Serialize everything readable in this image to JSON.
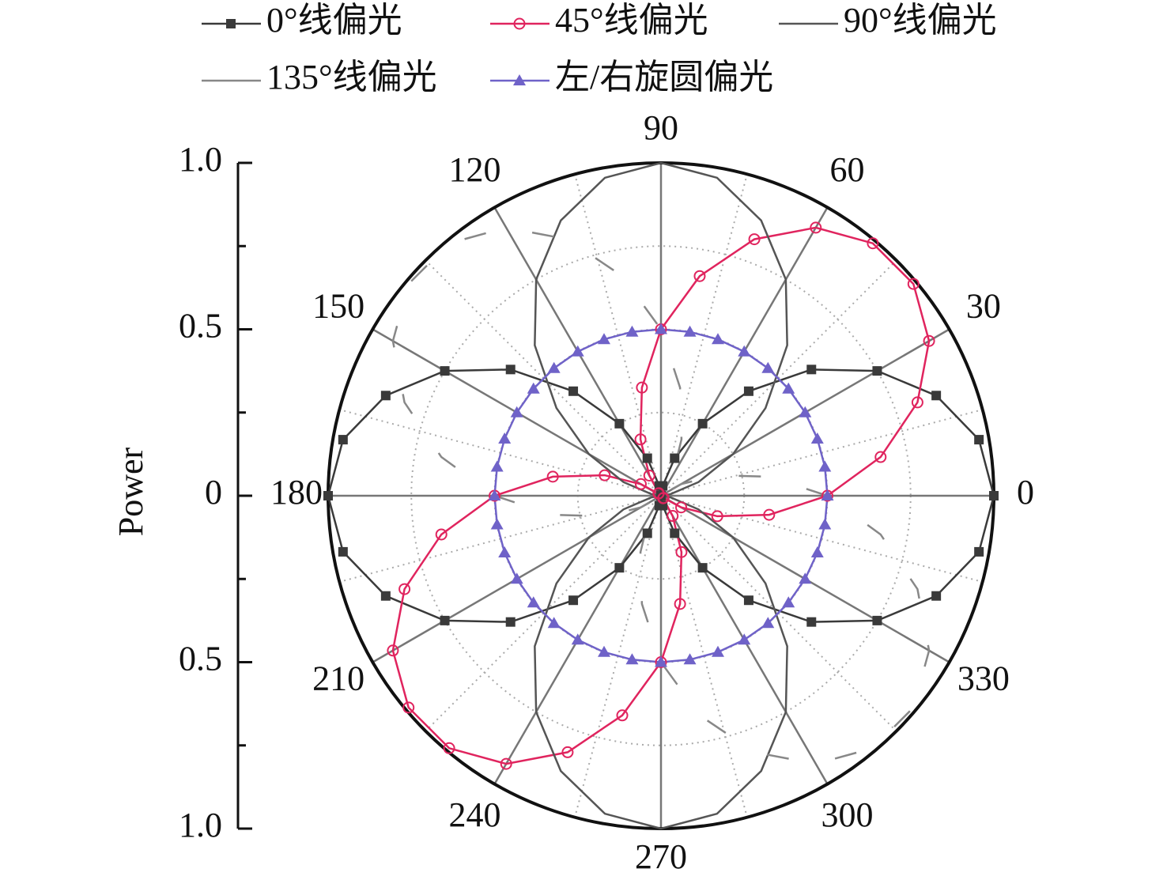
{
  "chart_data": {
    "type": "polar",
    "ylabel": "Power",
    "rlim": [
      0,
      1
    ],
    "rticks": [
      0,
      {
        "value": 0.5,
        "label": "0.5"
      },
      {
        "value": 1,
        "label": "1.0"
      }
    ],
    "thetaticks": [
      0,
      30,
      60,
      90,
      120,
      150,
      180,
      210,
      240,
      270,
      300,
      330
    ],
    "grid": true,
    "legend": "top",
    "x": [
      0,
      10,
      20,
      30,
      40,
      50,
      60,
      70,
      80,
      90,
      100,
      110,
      120,
      130,
      140,
      150,
      160,
      170,
      180,
      190,
      200,
      210,
      220,
      230,
      240,
      250,
      260,
      270,
      280,
      290,
      300,
      310,
      320,
      330,
      340,
      350
    ],
    "series": [
      {
        "name": "0°线偏光",
        "color": "#3a3a3a",
        "marker": "square",
        "dash": "solid",
        "values": [
          1,
          0.97,
          0.88,
          0.75,
          0.59,
          0.41,
          0.25,
          0.12,
          0.03,
          0,
          0.03,
          0.12,
          0.25,
          0.41,
          0.59,
          0.75,
          0.88,
          0.97,
          1,
          0.97,
          0.88,
          0.75,
          0.59,
          0.41,
          0.25,
          0.12,
          0.03,
          0,
          0.03,
          0.12,
          0.25,
          0.41,
          0.59,
          0.75,
          0.88,
          0.97
        ]
      },
      {
        "name": "45°线偏光",
        "color": "#e0245e",
        "marker": "circle",
        "dash": "solid",
        "values": [
          0.5,
          0.67,
          0.82,
          0.93,
          0.99,
          0.99,
          0.93,
          0.82,
          0.67,
          0.5,
          0.33,
          0.18,
          0.07,
          0.01,
          0.01,
          0.07,
          0.18,
          0.33,
          0.5,
          0.67,
          0.82,
          0.93,
          0.99,
          0.99,
          0.93,
          0.82,
          0.67,
          0.5,
          0.33,
          0.18,
          0.07,
          0.01,
          0.01,
          0.07,
          0.18,
          0.33
        ]
      },
      {
        "name": "90°线偏光",
        "color": "#555555",
        "marker": "none",
        "dash": "solid",
        "values": [
          0,
          0.03,
          0.12,
          0.25,
          0.41,
          0.59,
          0.75,
          0.88,
          0.97,
          1,
          0.97,
          0.88,
          0.75,
          0.59,
          0.41,
          0.25,
          0.12,
          0.03,
          0,
          0.03,
          0.12,
          0.25,
          0.41,
          0.59,
          0.75,
          0.88,
          0.97,
          1,
          0.97,
          0.88,
          0.75,
          0.59,
          0.41,
          0.25,
          0.12,
          0.03
        ]
      },
      {
        "name": "135°线偏光",
        "color": "#888888",
        "marker": "none",
        "dash": "dashed",
        "values": [
          0.5,
          0.33,
          0.18,
          0.07,
          0.01,
          0.01,
          0.07,
          0.18,
          0.33,
          0.5,
          0.67,
          0.82,
          0.93,
          0.99,
          0.99,
          0.93,
          0.82,
          0.67,
          0.5,
          0.33,
          0.18,
          0.07,
          0.01,
          0.01,
          0.07,
          0.18,
          0.33,
          0.5,
          0.67,
          0.82,
          0.93,
          0.99,
          0.99,
          0.93,
          0.82,
          0.67
        ]
      },
      {
        "name": "左/右旋圆偏光",
        "color": "#6f62c8",
        "marker": "triangle",
        "dash": "solid",
        "values": [
          0.5,
          0.5,
          0.5,
          0.5,
          0.5,
          0.5,
          0.5,
          0.5,
          0.5,
          0.5,
          0.5,
          0.5,
          0.5,
          0.5,
          0.5,
          0.5,
          0.5,
          0.5,
          0.5,
          0.5,
          0.5,
          0.5,
          0.5,
          0.5,
          0.5,
          0.5,
          0.5,
          0.5,
          0.5,
          0.5,
          0.5,
          0.5,
          0.5,
          0.5,
          0.5,
          0.5
        ]
      }
    ]
  }
}
